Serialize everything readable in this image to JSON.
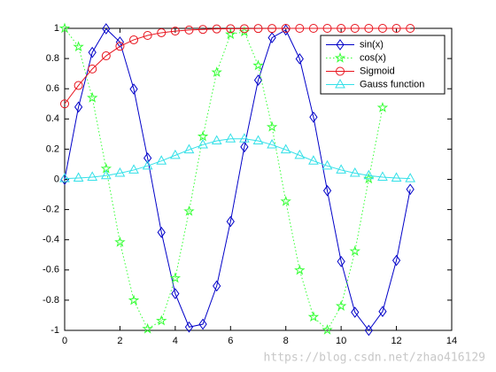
{
  "chart_data": {
    "type": "line",
    "x": [
      0,
      0.5,
      1,
      1.5,
      2,
      2.5,
      3,
      3.5,
      4,
      4.5,
      5,
      5.5,
      6,
      6.5,
      7,
      7.5,
      8,
      8.5,
      9,
      9.5,
      10,
      10.5,
      11,
      11.5,
      12,
      12.5
    ],
    "series": [
      {
        "name": "sin(x)",
        "color": "#0000c8",
        "marker": "diamond",
        "line": "solid",
        "values": [
          0,
          0.479,
          0.841,
          0.997,
          0.909,
          0.598,
          0.141,
          -0.351,
          -0.757,
          -0.978,
          -0.959,
          -0.706,
          -0.279,
          0.215,
          0.657,
          0.938,
          0.989,
          0.798,
          0.412,
          -0.075,
          -0.544,
          -0.88,
          -1.0,
          -0.875,
          -0.537,
          -0.066
        ]
      },
      {
        "name": "cos(x)",
        "color": "#33ff33",
        "marker": "star",
        "line": "dotted",
        "values": [
          1,
          0.878,
          0.54,
          0.071,
          -0.416,
          -0.801,
          -0.99,
          -0.936,
          -0.654,
          -0.211,
          0.284,
          0.709,
          0.96,
          0.977,
          0.754,
          0.347,
          -0.146,
          -0.602,
          -0.911,
          -0.997,
          -0.839,
          -0.476,
          0.004,
          0.475,
          null,
          null
        ]
      },
      {
        "name": "Sigmoid",
        "color": "#e8141e",
        "marker": "circle",
        "line": "solid",
        "values": [
          0.5,
          0.622,
          0.731,
          0.818,
          0.881,
          0.924,
          0.953,
          0.971,
          0.982,
          0.989,
          0.993,
          0.996,
          0.998,
          0.998,
          0.999,
          0.999,
          1,
          1,
          1,
          1,
          1,
          1,
          1,
          1,
          1,
          1
        ]
      },
      {
        "name": "Gauss function",
        "color": "#33e0e8",
        "marker": "triangle",
        "line": "solid",
        "values": [
          0.005,
          0.009,
          0.015,
          0.025,
          0.041,
          0.062,
          0.089,
          0.122,
          0.159,
          0.196,
          0.229,
          0.255,
          0.268,
          0.268,
          0.255,
          0.229,
          0.196,
          0.159,
          0.122,
          0.089,
          0.062,
          0.041,
          0.025,
          0.015,
          0.009,
          0.005
        ]
      }
    ],
    "xlim": [
      0,
      14
    ],
    "xticks": [
      0,
      2,
      4,
      6,
      8,
      10,
      12,
      14
    ],
    "ylim": [
      -1,
      1
    ],
    "yticks": [
      -1,
      -0.8,
      -0.6,
      -0.4,
      -0.2,
      0,
      0.2,
      0.4,
      0.6,
      0.8,
      1
    ],
    "grid": false,
    "legend": "northeast",
    "watermark": "https://blog.csdn.net/zhao416129"
  }
}
